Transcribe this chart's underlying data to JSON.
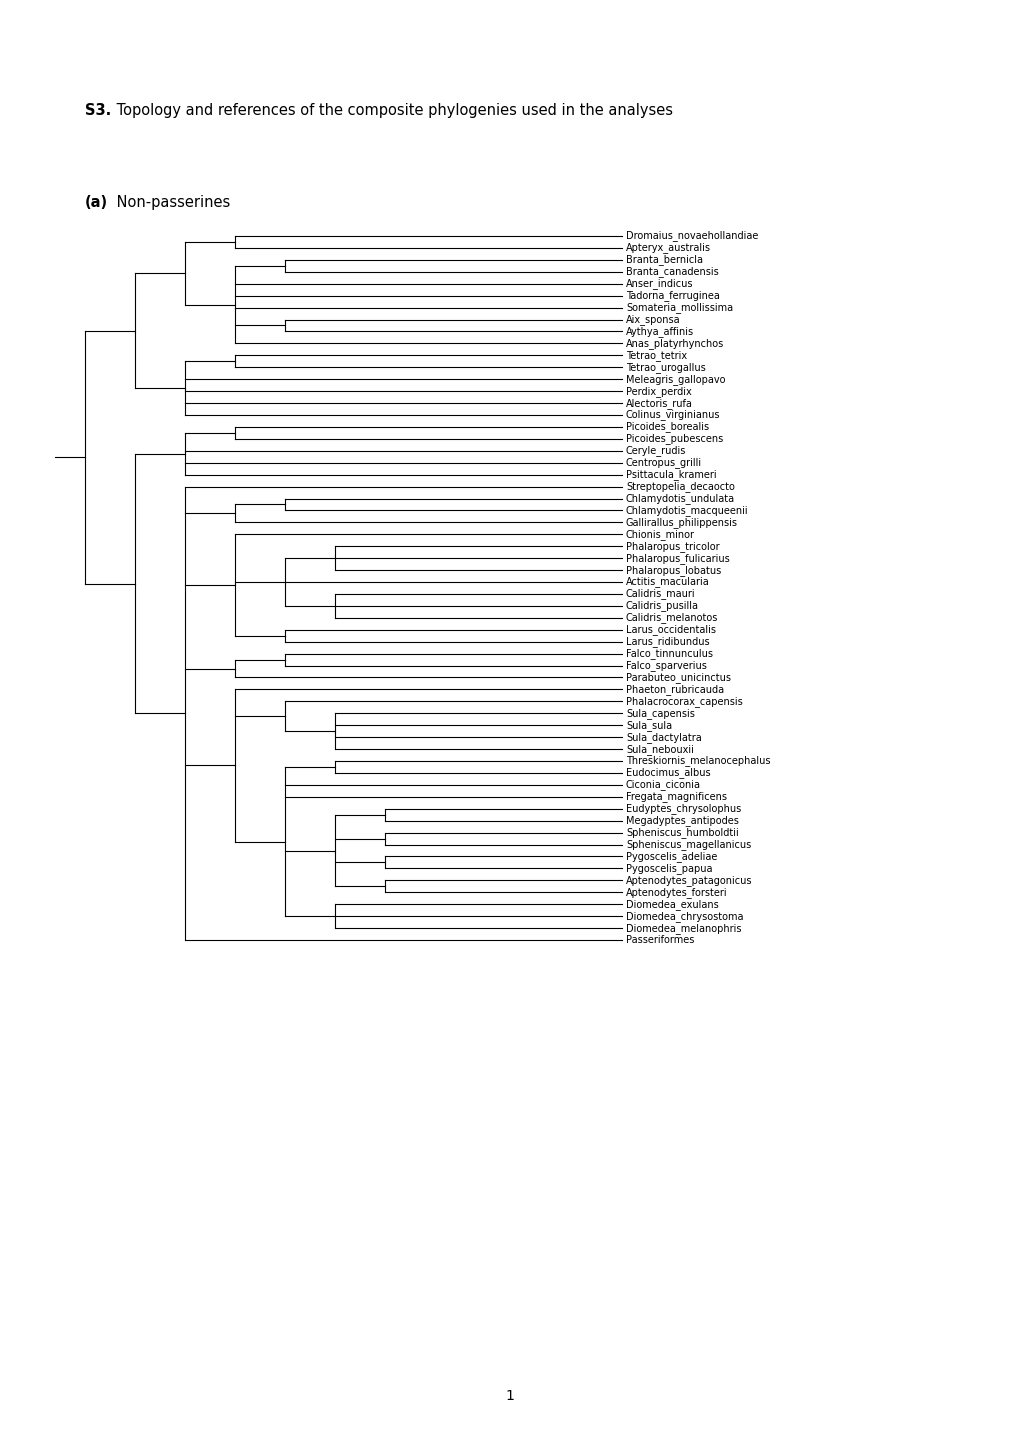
{
  "title_bold": "S3.",
  "title_normal": " Topology and references of the composite phylogenies used in the analyses",
  "section_bold": "(a)",
  "section_normal": " Non-passerines",
  "page_number": "1",
  "taxa": [
    "Dromaius_novaehollandiae",
    "Apteryx_australis",
    "Branta_bernicla",
    "Branta_canadensis",
    "Anser_indicus",
    "Tadorna_ferruginea",
    "Somateria_mollissima",
    "Aix_sponsa",
    "Aythya_affinis",
    "Anas_platyrhynchos",
    "Tetrao_tetrix",
    "Tetrao_urogallus",
    "Meleagris_gallopavo",
    "Perdix_perdix",
    "Alectoris_rufa",
    "Colinus_virginianus",
    "Picoides_borealis",
    "Picoides_pubescens",
    "Ceryle_rudis",
    "Centropus_grilli",
    "Psittacula_krameri",
    "Streptopelia_decaocto",
    "Chlamydotis_undulata",
    "Chlamydotis_macqueenii",
    "Gallirallus_philippensis",
    "Chionis_minor",
    "Phalaropus_tricolor",
    "Phalaropus_fulicarius",
    "Phalaropus_lobatus",
    "Actitis_macularia",
    "Calidris_mauri",
    "Calidris_pusilla",
    "Calidris_melanotos",
    "Larus_occidentalis",
    "Larus_ridibundus",
    "Falco_tinnunculus",
    "Falco_sparverius",
    "Parabuteo_unicinctus",
    "Phaeton_rubricauda",
    "Phalacrocorax_capensis",
    "Sula_capensis",
    "Sula_sula",
    "Sula_dactylatra",
    "Sula_nebouxii",
    "Threskiornis_melanocephalus",
    "Eudocimus_albus",
    "Ciconia_ciconia",
    "Fregata_magnificens",
    "Eudyptes_chrysolophus",
    "Megadyptes_antipodes",
    "Spheniscus_humboldtii",
    "Spheniscus_magellanicus",
    "Pygoscelis_adeliae",
    "Pygoscelis_papua",
    "Aptenodytes_patagonicus",
    "Aptenodytes_forsteri",
    "Diomedea_exulans",
    "Diomedea_chrysostoma",
    "Diomedea_melanophris",
    "Passeriformes"
  ],
  "background_color": "#ffffff",
  "line_color": "#000000",
  "text_color": "#000000",
  "font_size": 7.0,
  "title_font_size": 10.5
}
